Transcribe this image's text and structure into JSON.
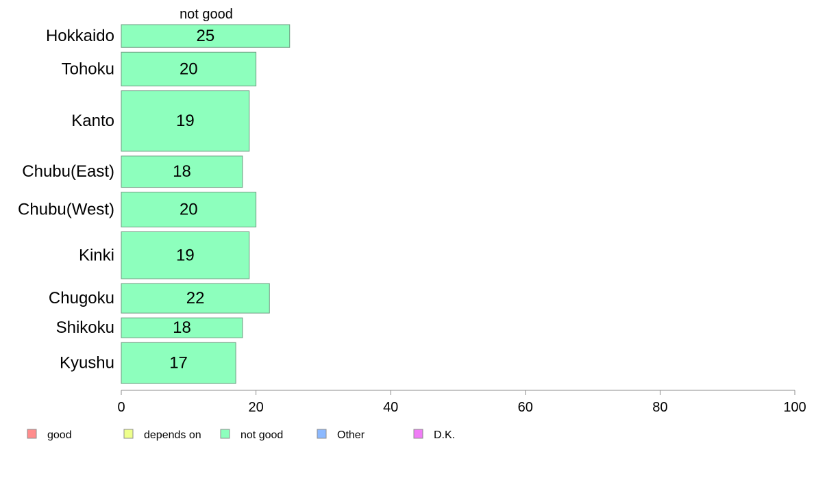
{
  "chart_data": {
    "type": "bar",
    "orientation": "horizontal",
    "title": "not good",
    "categories": [
      "Hokkaido",
      "Tohoku",
      "Kanto",
      "Chubu(East)",
      "Chubu(West)",
      "Kinki",
      "Chugoku",
      "Shikoku",
      "Kyushu"
    ],
    "series": [
      {
        "name": "not good",
        "values": [
          25,
          20,
          19,
          18,
          20,
          19,
          22,
          18,
          17
        ],
        "color": "#8dffbd"
      }
    ],
    "bar_labels": [
      "25",
      "20",
      "19",
      "18",
      "20",
      "19",
      "22",
      "18",
      "17"
    ],
    "bar_weights": [
      0.64,
      0.95,
      1.7,
      0.88,
      0.98,
      1.32,
      0.83,
      0.56,
      1.15
    ],
    "xlim": [
      0,
      100
    ],
    "xticks": [
      0,
      20,
      40,
      60,
      80,
      100
    ],
    "xtick_labels": [
      "0",
      "20",
      "40",
      "60",
      "80",
      "100"
    ],
    "xlabel": "",
    "ylabel": "",
    "grid": false,
    "legend_position": "bottom",
    "legend": [
      {
        "label": "good",
        "color": "#ff8c8c"
      },
      {
        "label": "depends on",
        "color": "#eeff8c"
      },
      {
        "label": "not good",
        "color": "#8dffbd"
      },
      {
        "label": "Other",
        "color": "#8cb9ff"
      },
      {
        "label": "D.K.",
        "color": "#f07cf6"
      }
    ],
    "axis_color": "#8c8c8c",
    "bar_stroke": "#6e9a80"
  }
}
